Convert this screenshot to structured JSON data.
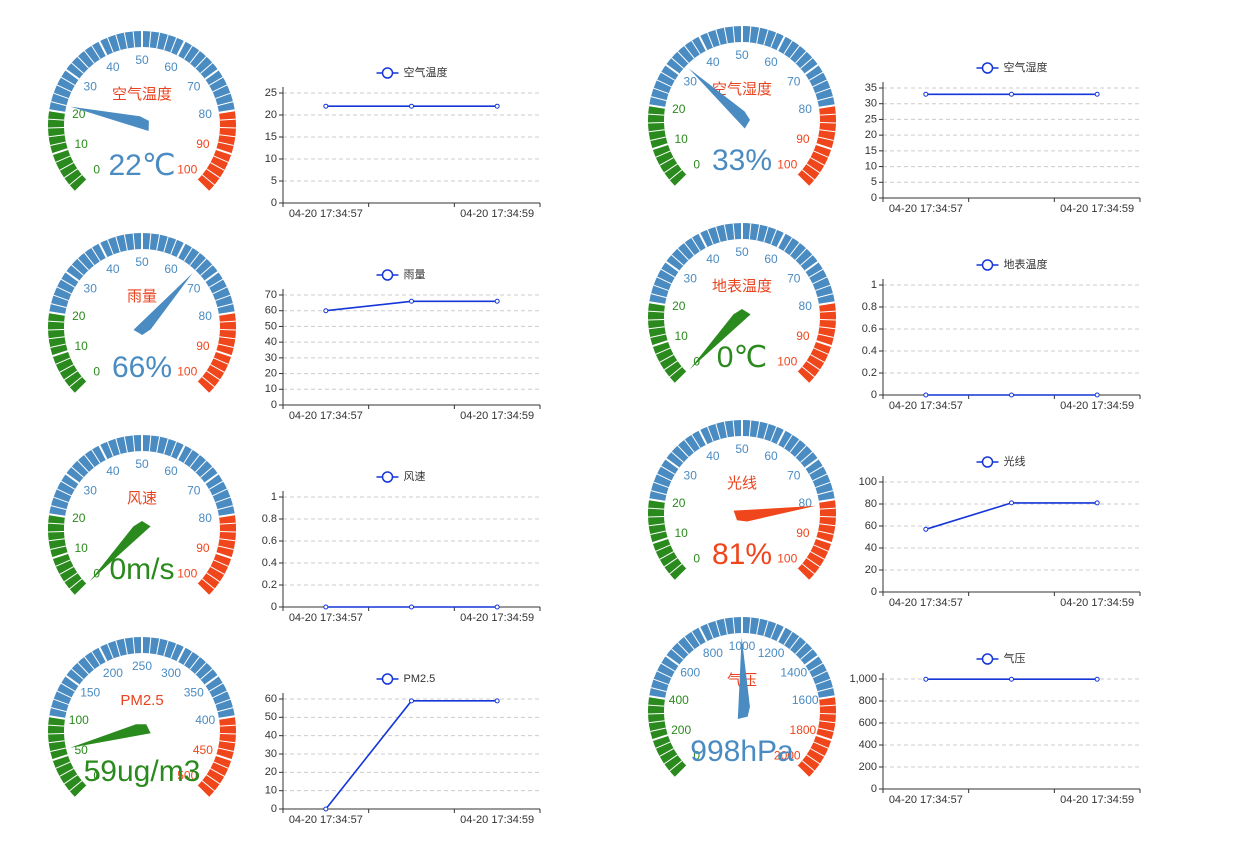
{
  "chart_data": [
    {
      "type": "gauge",
      "title": "空气温度",
      "values": [
        22
      ],
      "value_labels": [
        "22℃"
      ],
      "lim": [
        0,
        100
      ],
      "ticks": [
        0,
        10,
        20,
        30,
        40,
        50,
        60,
        70,
        80,
        90,
        100
      ],
      "bands": [
        [
          0.2,
          "#2a8a1d"
        ],
        [
          0.8,
          "#4a8bc2"
        ],
        [
          1,
          "#f0461c"
        ]
      ]
    },
    {
      "type": "line",
      "categories": [
        "04-20 17:34:57",
        null,
        "04-20 17:34:59"
      ],
      "series": [
        {
          "name": "空气温度",
          "color": "#1436d8",
          "values": [
            22,
            22,
            22
          ]
        }
      ],
      "ylim": [
        0,
        25
      ],
      "yticks": [
        0,
        5,
        10,
        15,
        20,
        25
      ],
      "grid": true
    },
    {
      "type": "gauge",
      "title": "雨量",
      "values": [
        66
      ],
      "value_labels": [
        "66%"
      ],
      "lim": [
        0,
        100
      ],
      "ticks": [
        0,
        10,
        20,
        30,
        40,
        50,
        60,
        70,
        80,
        90,
        100
      ],
      "bands": [
        [
          0.2,
          "#2a8a1d"
        ],
        [
          0.8,
          "#4a8bc2"
        ],
        [
          1,
          "#f0461c"
        ]
      ]
    },
    {
      "type": "line",
      "categories": [
        "04-20 17:34:57",
        null,
        "04-20 17:34:59"
      ],
      "series": [
        {
          "name": "雨量",
          "color": "#1436d8",
          "values": [
            60,
            66,
            66
          ]
        }
      ],
      "ylim": [
        0,
        70
      ],
      "yticks": [
        0,
        10,
        20,
        30,
        40,
        50,
        60,
        70
      ],
      "grid": true
    },
    {
      "type": "gauge",
      "title": "风速",
      "values": [
        0
      ],
      "value_labels": [
        "0m/s"
      ],
      "lim": [
        0,
        100
      ],
      "ticks": [
        0,
        10,
        20,
        30,
        40,
        50,
        60,
        70,
        80,
        90,
        100
      ],
      "bands": [
        [
          0.2,
          "#2a8a1d"
        ],
        [
          0.8,
          "#4a8bc2"
        ],
        [
          1,
          "#f0461c"
        ]
      ]
    },
    {
      "type": "line",
      "categories": [
        "04-20 17:34:57",
        null,
        "04-20 17:34:59"
      ],
      "series": [
        {
          "name": "风速",
          "color": "#1436d8",
          "values": [
            0,
            0,
            0
          ]
        }
      ],
      "ylim": [
        0,
        1
      ],
      "yticks": [
        0,
        0.2,
        0.4,
        0.6,
        0.8,
        1
      ],
      "grid": true
    },
    {
      "type": "gauge",
      "title": "PM2.5",
      "values": [
        59
      ],
      "value_labels": [
        "59ug/m3"
      ],
      "lim": [
        0,
        500
      ],
      "ticks": [
        0,
        50,
        100,
        150,
        200,
        250,
        300,
        350,
        400,
        450,
        500
      ],
      "bands": [
        [
          0.2,
          "#2a8a1d"
        ],
        [
          0.8,
          "#4a8bc2"
        ],
        [
          1,
          "#f0461c"
        ]
      ]
    },
    {
      "type": "line",
      "categories": [
        "04-20 17:34:57",
        null,
        "04-20 17:34:59"
      ],
      "series": [
        {
          "name": "PM2.5",
          "color": "#1436d8",
          "values": [
            0,
            59,
            59
          ]
        }
      ],
      "ylim": [
        0,
        60
      ],
      "yticks": [
        0,
        10,
        20,
        30,
        40,
        50,
        60
      ],
      "grid": true
    },
    {
      "type": "gauge",
      "title": "空气湿度",
      "values": [
        33
      ],
      "value_labels": [
        "33%"
      ],
      "lim": [
        0,
        100
      ],
      "ticks": [
        0,
        10,
        20,
        30,
        40,
        50,
        60,
        70,
        80,
        90,
        100
      ],
      "bands": [
        [
          0.2,
          "#2a8a1d"
        ],
        [
          0.8,
          "#4a8bc2"
        ],
        [
          1,
          "#f0461c"
        ]
      ]
    },
    {
      "type": "line",
      "categories": [
        "04-20 17:34:57",
        null,
        "04-20 17:34:59"
      ],
      "series": [
        {
          "name": "空气湿度",
          "color": "#1436d8",
          "values": [
            33,
            33,
            33
          ]
        }
      ],
      "ylim": [
        0,
        35
      ],
      "yticks": [
        0,
        5,
        10,
        15,
        20,
        25,
        30,
        35
      ],
      "grid": true
    },
    {
      "type": "gauge",
      "title": "地表温度",
      "values": [
        0
      ],
      "value_labels": [
        "0℃"
      ],
      "lim": [
        0,
        100
      ],
      "ticks": [
        0,
        10,
        20,
        30,
        40,
        50,
        60,
        70,
        80,
        90,
        100
      ],
      "bands": [
        [
          0.2,
          "#2a8a1d"
        ],
        [
          0.8,
          "#4a8bc2"
        ],
        [
          1,
          "#f0461c"
        ]
      ]
    },
    {
      "type": "line",
      "categories": [
        "04-20 17:34:57",
        null,
        "04-20 17:34:59"
      ],
      "series": [
        {
          "name": "地表温度",
          "color": "#1436d8",
          "values": [
            0,
            0,
            0
          ]
        }
      ],
      "ylim": [
        0,
        1
      ],
      "yticks": [
        0,
        0.2,
        0.4,
        0.6,
        0.8,
        1
      ],
      "grid": true
    },
    {
      "type": "gauge",
      "title": "光线",
      "values": [
        81
      ],
      "value_labels": [
        "81%"
      ],
      "lim": [
        0,
        100
      ],
      "ticks": [
        0,
        10,
        20,
        30,
        40,
        50,
        60,
        70,
        80,
        90,
        100
      ],
      "bands": [
        [
          0.2,
          "#2a8a1d"
        ],
        [
          0.8,
          "#4a8bc2"
        ],
        [
          1,
          "#f0461c"
        ]
      ]
    },
    {
      "type": "line",
      "categories": [
        "04-20 17:34:57",
        null,
        "04-20 17:34:59"
      ],
      "series": [
        {
          "name": "光线",
          "color": "#1436d8",
          "values": [
            57,
            81,
            81
          ]
        }
      ],
      "ylim": [
        0,
        100
      ],
      "yticks": [
        0,
        20,
        40,
        60,
        80,
        100
      ],
      "grid": true
    },
    {
      "type": "gauge",
      "title": "气压",
      "values": [
        998
      ],
      "value_labels": [
        "998hPa"
      ],
      "lim": [
        0,
        2000
      ],
      "ticks": [
        0,
        200,
        400,
        600,
        800,
        1000,
        1200,
        1400,
        1600,
        1800,
        2000
      ],
      "bands": [
        [
          0.2,
          "#2a8a1d"
        ],
        [
          0.8,
          "#4a8bc2"
        ],
        [
          1,
          "#f0461c"
        ]
      ]
    },
    {
      "type": "line",
      "categories": [
        "04-20 17:34:57",
        null,
        "04-20 17:34:59"
      ],
      "series": [
        {
          "name": "气压",
          "color": "#1436d8",
          "values": [
            998,
            998,
            998
          ]
        }
      ],
      "ylim": [
        0,
        1000
      ],
      "yticks": [
        0,
        200,
        400,
        600,
        800,
        {
          "value": 1000,
          "label": "1,000"
        }
      ],
      "grid": true
    }
  ]
}
